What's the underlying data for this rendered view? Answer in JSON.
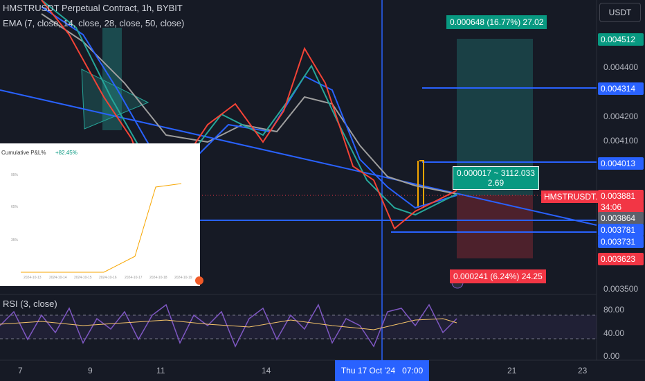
{
  "header": {
    "title": "HMSTRUSDT Perpetual Contract, 1h, BYBIT",
    "indicator": "EMA (7, close, 14, close, 28, close, 50, close)"
  },
  "currency": "USDT",
  "price_axis": {
    "ticks": [
      "0.004400",
      "0.004200",
      "0.004100",
      "0.003500"
    ]
  },
  "price_labels": {
    "target": "0.004512",
    "level_high": "0.004314",
    "level_mid": "0.004013",
    "symbol": "HMSTRUSDT.P",
    "last": "0.003881",
    "countdown": "34:06",
    "crosshair": "0.003864",
    "level_low1": "0.003781",
    "level_low2": "0.003731",
    "stop": "0.003623"
  },
  "position": {
    "profit": "0.000648 (16.77%) 27.02",
    "entry_line1": "0.000017 ~ 3112.033",
    "entry_line2": "2.69",
    "loss": "0.000241 (6.24%) 24.25"
  },
  "inset": {
    "title": "Cumulative P&L%",
    "value": "+82.45%",
    "yticks": [
      "95%",
      "65%",
      "35%"
    ],
    "xticks": [
      "2024-10-13",
      "2024-10-14",
      "2024-10-15",
      "2024-10-16",
      "2024-10-17",
      "2024-10-18",
      "2024-10-19"
    ]
  },
  "rsi": {
    "title": "RSI (3, close)",
    "ticks": [
      "80.00",
      "40.00",
      "0.00"
    ]
  },
  "time_axis": {
    "ticks": [
      "7",
      "9",
      "11",
      "14",
      "21",
      "23"
    ],
    "crosshair": "Thu 17 Oct '24   07:00"
  }
}
